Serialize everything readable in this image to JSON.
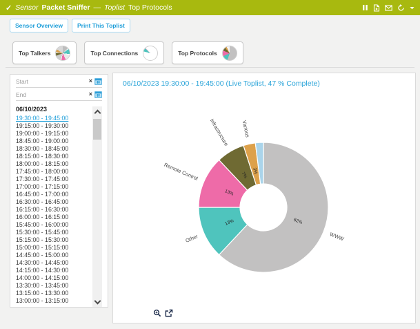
{
  "header": {
    "status_icon": "check",
    "kind_label": "Sensor",
    "sensor_name": "Packet Sniffer",
    "separator": "—",
    "section_label": "Toplist",
    "page_title": "Top Protocols",
    "action_icons": [
      "pause-icon",
      "report-icon",
      "email-icon",
      "refresh-icon",
      "caret-down-icon"
    ],
    "bg_color": "#a8b90f"
  },
  "toolbar": {
    "buttons": [
      "Sensor Overview",
      "Print This Toplist"
    ]
  },
  "toplist_tabs": [
    {
      "label": "Top Talkers",
      "icon": "pie-talkers-icon"
    },
    {
      "label": "Top Connections",
      "icon": "pie-connections-icon"
    },
    {
      "label": "Top Protocols",
      "icon": "pie-protocols-icon",
      "active": true
    }
  ],
  "sidebar": {
    "start_placeholder": "Start",
    "end_placeholder": "End",
    "clear_icon": "×",
    "date_header": "06/10/2023",
    "selected_index": 0,
    "intervals": [
      "19:30:00 - 19:45:00",
      "19:15:00 - 19:30:00",
      "19:00:00 - 19:15:00",
      "18:45:00 - 19:00:00",
      "18:30:00 - 18:45:00",
      "18:15:00 - 18:30:00",
      "18:00:00 - 18:15:00",
      "17:45:00 - 18:00:00",
      "17:30:00 - 17:45:00",
      "17:00:00 - 17:15:00",
      "16:45:00 - 17:00:00",
      "16:30:00 - 16:45:00",
      "16:15:00 - 16:30:00",
      "16:00:00 - 16:15:00",
      "15:45:00 - 16:00:00",
      "15:30:00 - 15:45:00",
      "15:15:00 - 15:30:00",
      "15:00:00 - 15:15:00",
      "14:45:00 - 15:00:00",
      "14:30:00 - 14:45:00",
      "14:15:00 - 14:30:00",
      "14:00:00 - 14:15:00",
      "13:30:00 - 13:45:00",
      "13:15:00 - 13:30:00",
      "13:00:00 - 13:15:00"
    ]
  },
  "main": {
    "title": "06/10/2023 19:30:00 - 19:45:00 (Live Toplist, 47 % Complete)",
    "footer_icons": [
      "zoom-in-icon",
      "external-link-icon"
    ]
  },
  "chart_data": {
    "type": "pie",
    "donut": true,
    "title": "06/10/2023 19:30:00 - 19:45:00 (Live Toplist, 47 % Complete)",
    "start_angle_deg": 0,
    "direction": "clockwise",
    "series": [
      {
        "name": "WWW",
        "value": 62,
        "color": "#c2c1c1"
      },
      {
        "name": "Other",
        "value": 13,
        "color": "#4fc4bd"
      },
      {
        "name": "Remote Control",
        "value": 13,
        "color": "#ee6ba8"
      },
      {
        "name": "Infrastructure",
        "value": 7,
        "color": "#6f6a33"
      },
      {
        "name": "Various",
        "value": 3,
        "color": "#dda14b"
      },
      {
        "name": "",
        "value": 2,
        "color": "#aad4ea"
      }
    ]
  }
}
